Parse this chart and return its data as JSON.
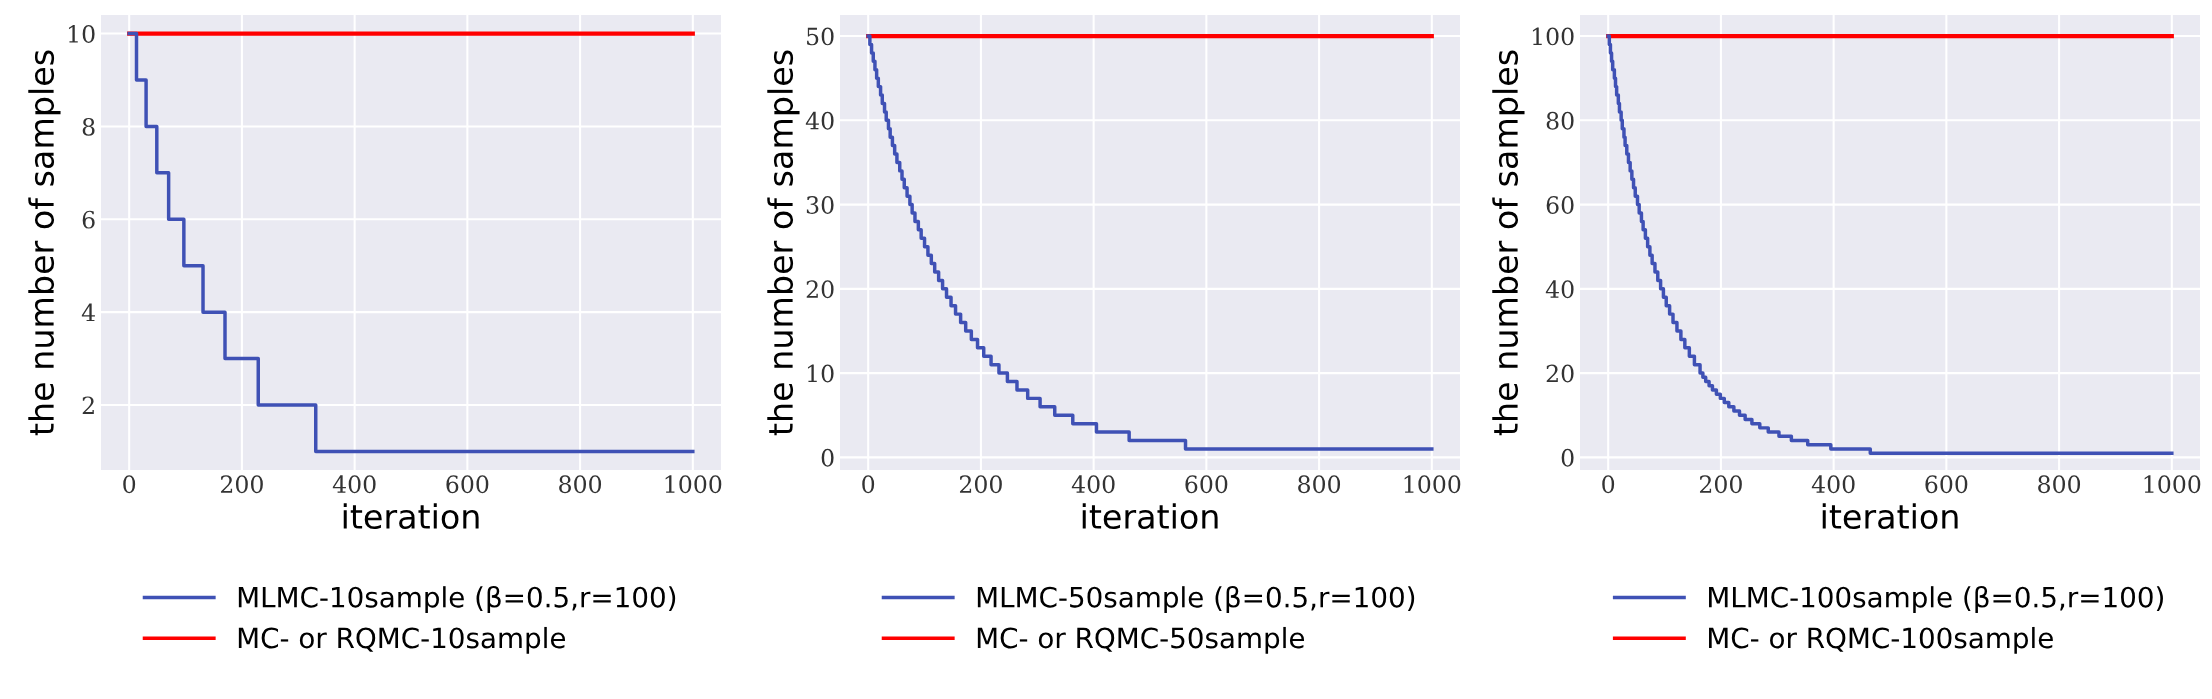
{
  "chart_data": [
    {
      "type": "step",
      "xlabel": "iteration",
      "ylabel": "the number of samples",
      "xlim": [
        -50,
        1050
      ],
      "ylim": [
        0.6,
        10.4
      ],
      "xticks": [
        0,
        200,
        400,
        600,
        800,
        1000
      ],
      "yticks": [
        2,
        4,
        6,
        8,
        10
      ],
      "grid": true,
      "legend": "bottom",
      "series": [
        {
          "name": "MLMC-10sample (β=0.5,r=100)",
          "color": "#3f51b5",
          "x": [
            0,
            13,
            30,
            49,
            70,
            97,
            131,
            170,
            229,
            331,
            1000
          ],
          "values": [
            10,
            9,
            8,
            7,
            6,
            5,
            4,
            3,
            2,
            1,
            1
          ]
        },
        {
          "name": "MC- or RQMC-10sample",
          "color": "#ff0000",
          "type": "line",
          "x": [
            0,
            1000
          ],
          "values": [
            10,
            10
          ]
        }
      ]
    },
    {
      "type": "step",
      "xlabel": "iteration",
      "ylabel": "the number of samples",
      "xlim": [
        -50,
        1050
      ],
      "ylim": [
        -1.5,
        52.5
      ],
      "xticks": [
        0,
        200,
        400,
        600,
        800,
        1000
      ],
      "yticks": [
        0,
        10,
        20,
        30,
        40,
        50
      ],
      "grid": true,
      "legend": "bottom",
      "series": [
        {
          "name": "MLMC-50sample (β=0.5,r=100)",
          "color": "#3f51b5",
          "x": [
            0,
            3,
            6,
            9,
            12,
            15,
            18,
            22,
            25,
            29,
            32,
            36,
            39,
            43,
            47,
            51,
            56,
            60,
            64,
            69,
            74,
            78,
            83,
            89,
            94,
            100,
            106,
            112,
            118,
            125,
            132,
            139,
            147,
            155,
            164,
            173,
            183,
            194,
            205,
            218,
            232,
            247,
            264,
            283,
            305,
            331,
            363,
            405,
            463,
            563,
            1000
          ],
          "values": [
            50,
            49,
            48,
            47,
            46,
            45,
            44,
            43,
            42,
            41,
            40,
            39,
            38,
            37,
            36,
            35,
            34,
            33,
            32,
            31,
            30,
            29,
            28,
            27,
            26,
            25,
            24,
            23,
            22,
            21,
            20,
            19,
            18,
            17,
            16,
            15,
            14,
            13,
            12,
            11,
            10,
            9,
            8,
            7,
            6,
            5,
            4,
            3,
            2,
            1,
            1
          ]
        },
        {
          "name": "MC- or RQMC-50sample",
          "color": "#ff0000",
          "type": "line",
          "x": [
            0,
            1000
          ],
          "values": [
            50,
            50
          ]
        }
      ]
    },
    {
      "type": "step",
      "xlabel": "iteration",
      "ylabel": "the number of samples",
      "xlim": [
        -50,
        1050
      ],
      "ylim": [
        -3,
        105
      ],
      "xticks": [
        0,
        200,
        400,
        600,
        800,
        1000
      ],
      "yticks": [
        0,
        20,
        40,
        60,
        80,
        100
      ],
      "grid": true,
      "legend": "bottom",
      "series": [
        {
          "name": "MLMC-100sample (β=0.5,r=100)",
          "color": "#3f51b5",
          "x": [
            0,
            2,
            4,
            6,
            8,
            11,
            13,
            15,
            18,
            20,
            23,
            25,
            28,
            30,
            33,
            36,
            39,
            42,
            45,
            48,
            52,
            55,
            59,
            62,
            66,
            70,
            74,
            78,
            83,
            88,
            93,
            98,
            103,
            109,
            115,
            122,
            129,
            136,
            144,
            153,
            163,
            168,
            173,
            179,
            185,
            192,
            199,
            206,
            214,
            223,
            233,
            243,
            255,
            269,
            284,
            303,
            325,
            354,
            395,
            465,
            1000
          ],
          "values": [
            100,
            98,
            96,
            94,
            92,
            90,
            88,
            86,
            84,
            82,
            80,
            78,
            76,
            74,
            72,
            70,
            68,
            66,
            64,
            62,
            60,
            58,
            56,
            54,
            52,
            50,
            48,
            46,
            44,
            42,
            40,
            38,
            36,
            34,
            32,
            30,
            28,
            26,
            24,
            22,
            20,
            19,
            18,
            17,
            16,
            15,
            14,
            13,
            12,
            11,
            10,
            9,
            8,
            7,
            6,
            5,
            4,
            3,
            2,
            1,
            1
          ]
        },
        {
          "name": "MC- or RQMC-100sample",
          "color": "#ff0000",
          "type": "line",
          "x": [
            0,
            1000
          ],
          "values": [
            100,
            100
          ]
        }
      ]
    }
  ]
}
